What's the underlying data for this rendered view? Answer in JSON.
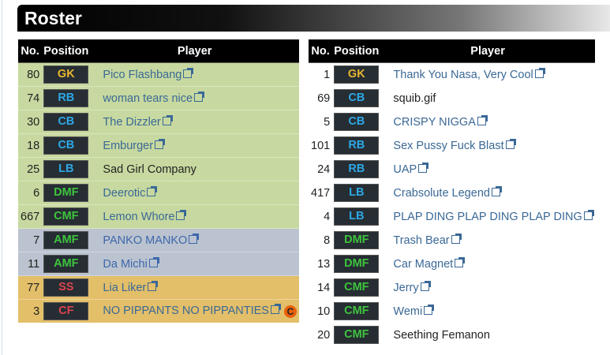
{
  "title": "Roster",
  "headers": {
    "no": "No.",
    "position": "Position",
    "player": "Player"
  },
  "colors": {
    "GK": "#e8b630",
    "RB": "#2ea8e6",
    "CB": "#2ea8e6",
    "LB": "#2ea8e6",
    "DMF": "#3ec43e",
    "CMF": "#3ec43e",
    "AMF": "#3ec43e",
    "SS": "#dc4450",
    "CF": "#dc4450",
    "row_green": "#c7d9a0",
    "row_gray": "#bac3cf",
    "row_orange": "#e3bf69",
    "link": "#3a6896"
  },
  "left": [
    {
      "no": "80",
      "pos": "GK",
      "player": "Pico Flashbang",
      "link": true,
      "row": "row_green"
    },
    {
      "no": "74",
      "pos": "RB",
      "player": "woman tears nice",
      "link": true,
      "row": "row_green"
    },
    {
      "no": "30",
      "pos": "CB",
      "player": "The Dizzler",
      "link": true,
      "row": "row_green"
    },
    {
      "no": "18",
      "pos": "CB",
      "player": "Emburger",
      "link": true,
      "row": "row_green"
    },
    {
      "no": "25",
      "pos": "LB",
      "player": "Sad Girl Company",
      "link": false,
      "row": "row_green"
    },
    {
      "no": "6",
      "pos": "DMF",
      "player": "Deerotic",
      "link": true,
      "row": "row_green"
    },
    {
      "no": "667",
      "pos": "CMF",
      "player": "Lemon Whore",
      "link": true,
      "row": "row_green"
    },
    {
      "no": "7",
      "pos": "AMF",
      "player": "PANKO MANKO",
      "link": true,
      "row": "row_gray"
    },
    {
      "no": "11",
      "pos": "AMF",
      "player": "Da Michi",
      "link": true,
      "row": "row_gray"
    },
    {
      "no": "77",
      "pos": "SS",
      "player": "Lia Liker",
      "link": true,
      "row": "row_orange"
    },
    {
      "no": "3",
      "pos": "CF",
      "player": "NO PIPPANTS NO PIPPANTIES",
      "link": true,
      "row": "row_orange",
      "captain": "C"
    }
  ],
  "right": [
    {
      "no": "1",
      "pos": "GK",
      "player": "Thank You Nasa, Very Cool",
      "link": true
    },
    {
      "no": "69",
      "pos": "CB",
      "player": "squib.gif",
      "link": false
    },
    {
      "no": "5",
      "pos": "CB",
      "player": "CRISPY NIGGA",
      "link": true
    },
    {
      "no": "101",
      "pos": "RB",
      "player": "Sex Pussy Fuck Blast",
      "link": true
    },
    {
      "no": "24",
      "pos": "RB",
      "player": "UAP",
      "link": true
    },
    {
      "no": "417",
      "pos": "LB",
      "player": "Crabsolute Legend",
      "link": true
    },
    {
      "no": "4",
      "pos": "LB",
      "player": "PLAP DING PLAP DING PLAP DING",
      "link": true
    },
    {
      "no": "8",
      "pos": "DMF",
      "player": "Trash Bear",
      "link": true
    },
    {
      "no": "13",
      "pos": "DMF",
      "player": "Car Magnet",
      "link": true
    },
    {
      "no": "14",
      "pos": "CMF",
      "player": "Jerry",
      "link": true
    },
    {
      "no": "10",
      "pos": "CMF",
      "player": "Wemi",
      "link": true
    },
    {
      "no": "20",
      "pos": "CMF",
      "player": "Seething Femanon",
      "link": false
    }
  ]
}
